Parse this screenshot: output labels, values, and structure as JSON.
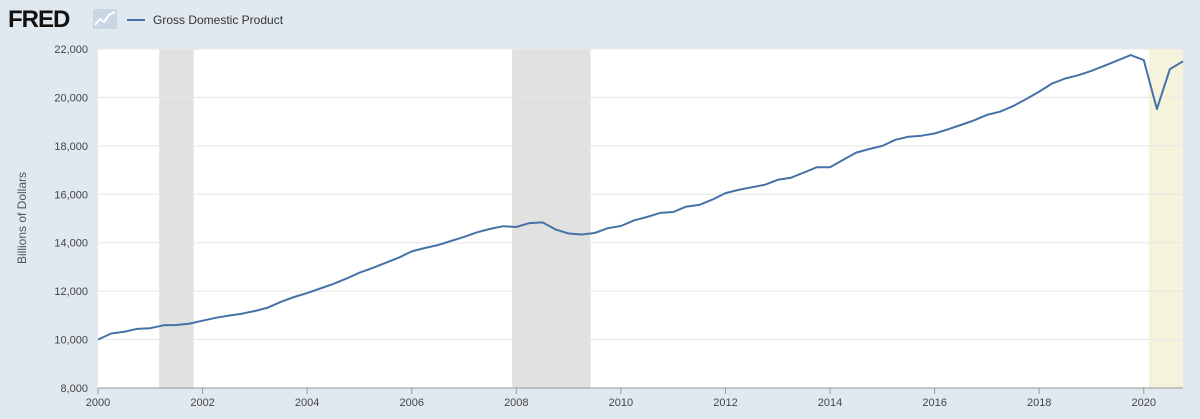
{
  "header": {
    "logo_text": "FRED",
    "legend_label": "Gross Domestic Product"
  },
  "colors": {
    "series": "#4572a7",
    "recession": "#e1e1e1",
    "highlight": "#f5f3dc",
    "plot_bg": "#ffffff",
    "page_bg": "#e1e9f0"
  },
  "chart_data": {
    "type": "line",
    "title": "",
    "xlabel": "",
    "ylabel": "Billions of Dollars",
    "xlim": [
      2000.0,
      2020.75
    ],
    "ylim": [
      8000,
      22000
    ],
    "grid": true,
    "legend_position": "top-left",
    "y_ticks": [
      {
        "value": 8000,
        "label": "8,000"
      },
      {
        "value": 10000,
        "label": "10,000"
      },
      {
        "value": 12000,
        "label": "12,000"
      },
      {
        "value": 14000,
        "label": "14,000"
      },
      {
        "value": 16000,
        "label": "16,000"
      },
      {
        "value": 18000,
        "label": "18,000"
      },
      {
        "value": 20000,
        "label": "20,000"
      },
      {
        "value": 22000,
        "label": "22,000"
      }
    ],
    "x_ticks": [
      {
        "value": 2000,
        "label": "2000"
      },
      {
        "value": 2002,
        "label": "2002"
      },
      {
        "value": 2004,
        "label": "2004"
      },
      {
        "value": 2006,
        "label": "2006"
      },
      {
        "value": 2008,
        "label": "2008"
      },
      {
        "value": 2010,
        "label": "2010"
      },
      {
        "value": 2012,
        "label": "2012"
      },
      {
        "value": 2014,
        "label": "2014"
      },
      {
        "value": 2016,
        "label": "2016"
      },
      {
        "value": 2018,
        "label": "2018"
      },
      {
        "value": 2020,
        "label": "2020"
      }
    ],
    "recessions": [
      {
        "start": 2001.17,
        "end": 2001.83
      },
      {
        "start": 2007.92,
        "end": 2009.42
      }
    ],
    "highlight_region": {
      "start": 2020.1,
      "end": 2020.75
    },
    "series": [
      {
        "name": "Gross Domestic Product",
        "x": [
          2000.0,
          2000.25,
          2000.5,
          2000.75,
          2001.0,
          2001.25,
          2001.5,
          2001.75,
          2002.0,
          2002.25,
          2002.5,
          2002.75,
          2003.0,
          2003.25,
          2003.5,
          2003.75,
          2004.0,
          2004.25,
          2004.5,
          2004.75,
          2005.0,
          2005.25,
          2005.5,
          2005.75,
          2006.0,
          2006.25,
          2006.5,
          2006.75,
          2007.0,
          2007.25,
          2007.5,
          2007.75,
          2008.0,
          2008.25,
          2008.5,
          2008.75,
          2009.0,
          2009.25,
          2009.5,
          2009.75,
          2010.0,
          2010.25,
          2010.5,
          2010.75,
          2011.0,
          2011.25,
          2011.5,
          2011.75,
          2012.0,
          2012.25,
          2012.5,
          2012.75,
          2013.0,
          2013.25,
          2013.5,
          2013.75,
          2014.0,
          2014.25,
          2014.5,
          2014.75,
          2015.0,
          2015.25,
          2015.5,
          2015.75,
          2016.0,
          2016.25,
          2016.5,
          2016.75,
          2017.0,
          2017.25,
          2017.5,
          2017.75,
          2018.0,
          2018.25,
          2018.5,
          2018.75,
          2019.0,
          2019.25,
          2019.5,
          2019.75,
          2020.0,
          2020.25,
          2020.5,
          2020.75
        ],
        "values": [
          10000,
          10250,
          10320,
          10440,
          10470,
          10590,
          10600,
          10660,
          10780,
          10900,
          10990,
          11070,
          11180,
          11320,
          11560,
          11760,
          11920,
          12110,
          12300,
          12520,
          12760,
          12950,
          13170,
          13380,
          13640,
          13780,
          13900,
          14070,
          14240,
          14430,
          14570,
          14680,
          14650,
          14810,
          14840,
          14550,
          14380,
          14340,
          14400,
          14600,
          14690,
          14920,
          15060,
          15230,
          15270,
          15490,
          15560,
          15780,
          16050,
          16180,
          16290,
          16390,
          16600,
          16680,
          16900,
          17120,
          17120,
          17420,
          17720,
          17870,
          18000,
          18250,
          18380,
          18420,
          18510,
          18680,
          18860,
          19050,
          19280,
          19410,
          19640,
          19930,
          20240,
          20580,
          20780,
          20920,
          21100,
          21310,
          21530,
          21750,
          21540,
          19520,
          21170,
          21490
        ]
      }
    ]
  }
}
